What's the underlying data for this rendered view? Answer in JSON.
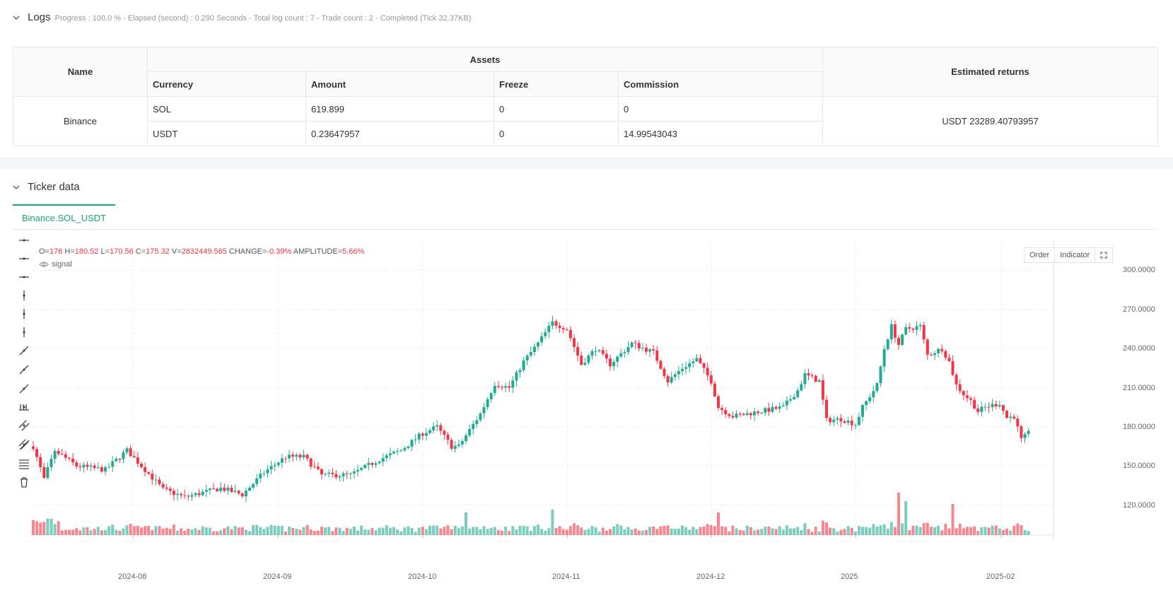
{
  "logs": {
    "title": "Logs",
    "meta": "Progress : 100.0 % - Elapsed (second) : 0.290  Seconds - Total log count : 7 - Trade count : 2 - Completed (Tick 32.37KB)"
  },
  "assets_table": {
    "headers": {
      "name": "Name",
      "assets": "Assets",
      "returns": "Estimated returns",
      "currency": "Currency",
      "amount": "Amount",
      "freeze": "Freeze",
      "commission": "Commission"
    },
    "exchange": "Binance",
    "rows": [
      {
        "currency": "SOL",
        "amount": "619.899",
        "freeze": "0",
        "commission": "0"
      },
      {
        "currency": "USDT",
        "amount": "0.23647957",
        "freeze": "0",
        "commission": "14.99543043"
      }
    ],
    "estimated_returns": "USDT 23289.40793957"
  },
  "ticker": {
    "title": "Ticker data",
    "tab": "Binance.SOL_USDT",
    "ohlc": {
      "o_label": "O=",
      "o": "176",
      "h_label": "H=",
      "h": "180.52",
      "l_label": "L=",
      "l": "170.56",
      "c_label": "C=",
      "c": "175.32",
      "v_label": "V=",
      "v": "2832449.565",
      "change_label": "CHANGE=",
      "change": "-0.39%",
      "amplitude_label": "AMPLITUDE=",
      "amplitude": "5.66%"
    },
    "signal": "signal",
    "buttons": {
      "order": "Order",
      "indicator": "Indicator"
    }
  },
  "colors": {
    "up": "#22ab94",
    "down": "#f23645",
    "accent": "#1aa37a"
  },
  "chart_data": {
    "type": "candlestick",
    "y_ticks": [
      "300.0000",
      "270.0000",
      "240.0000",
      "210.0000",
      "180.0000",
      "150.0000",
      "120.0000"
    ],
    "x_ticks": [
      "2024-08",
      "2024-09",
      "2024-10",
      "2024-11",
      "2024-12",
      "2025",
      "2025-02"
    ],
    "ylim": [
      97,
      323
    ],
    "waypoints": [
      [
        0,
        165
      ],
      [
        3,
        140
      ],
      [
        6,
        162
      ],
      [
        12,
        150
      ],
      [
        20,
        147
      ],
      [
        26,
        162
      ],
      [
        36,
        132
      ],
      [
        42,
        126
      ],
      [
        52,
        133
      ],
      [
        58,
        128
      ],
      [
        64,
        145
      ],
      [
        70,
        157
      ],
      [
        75,
        157
      ],
      [
        80,
        143
      ],
      [
        88,
        143
      ],
      [
        96,
        155
      ],
      [
        102,
        162
      ],
      [
        108,
        175
      ],
      [
        112,
        180
      ],
      [
        116,
        165
      ],
      [
        118,
        165
      ],
      [
        124,
        190
      ],
      [
        128,
        213
      ],
      [
        132,
        210
      ],
      [
        136,
        230
      ],
      [
        140,
        244
      ],
      [
        144,
        260
      ],
      [
        148,
        255
      ],
      [
        152,
        228
      ],
      [
        156,
        240
      ],
      [
        160,
        228
      ],
      [
        166,
        244
      ],
      [
        172,
        237
      ],
      [
        176,
        215
      ],
      [
        180,
        225
      ],
      [
        184,
        232
      ],
      [
        188,
        215
      ],
      [
        190,
        195
      ],
      [
        194,
        188
      ],
      [
        198,
        190
      ],
      [
        204,
        193
      ],
      [
        208,
        195
      ],
      [
        212,
        208
      ],
      [
        214,
        220
      ],
      [
        218,
        215
      ],
      [
        220,
        185
      ],
      [
        224,
        186
      ],
      [
        228,
        182
      ],
      [
        230,
        195
      ],
      [
        234,
        212
      ],
      [
        236,
        240
      ],
      [
        238,
        257
      ],
      [
        240,
        243
      ],
      [
        242,
        255
      ],
      [
        246,
        257
      ],
      [
        248,
        235
      ],
      [
        252,
        240
      ],
      [
        254,
        230
      ],
      [
        256,
        212
      ],
      [
        258,
        205
      ],
      [
        260,
        200
      ],
      [
        262,
        192
      ],
      [
        264,
        195
      ],
      [
        268,
        198
      ],
      [
        270,
        187
      ],
      [
        272,
        188
      ],
      [
        274,
        170
      ],
      [
        276,
        175
      ]
    ],
    "volume_highlights": [
      [
        120,
        5
      ],
      [
        144,
        6
      ],
      [
        190,
        5
      ],
      [
        240,
        12
      ],
      [
        242,
        9
      ],
      [
        255,
        8
      ]
    ]
  }
}
